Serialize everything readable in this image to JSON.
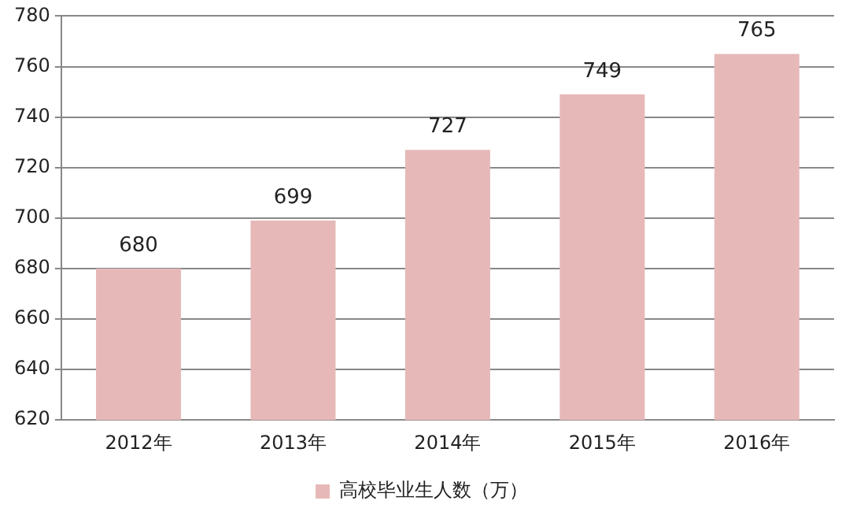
{
  "chart_data": {
    "type": "bar",
    "categories": [
      "2012年",
      "2013年",
      "2014年",
      "2015年",
      "2016年"
    ],
    "series": [
      {
        "name": "高校毕业生人数（万）",
        "color": "#e6b9b8",
        "values": [
          680,
          699,
          727,
          749,
          765
        ]
      }
    ],
    "ylim": [
      620,
      780
    ],
    "yticks": [
      620,
      640,
      660,
      680,
      700,
      720,
      740,
      760,
      780
    ],
    "grid": "y",
    "legend": "bottom",
    "data_labels": true
  }
}
